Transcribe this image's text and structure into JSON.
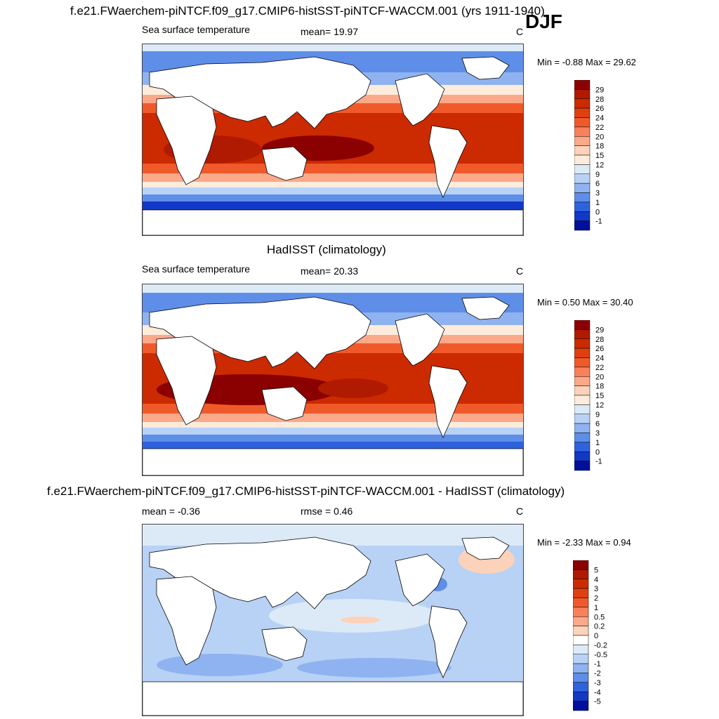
{
  "season": "DJF",
  "panels": [
    {
      "title": "f.e21.FWaerchem-piNTCF.f09_g17.CMIP6-histSST-piNTCF-WACCM.001 (yrs 1911-1940)",
      "left_label": "Sea surface temperature",
      "center_label": "mean=  19.97",
      "units": "C",
      "minmax": "Min =  -0.88 Max =  29.62"
    },
    {
      "title": "HadISST (climatology)",
      "left_label": "Sea surface temperature",
      "center_label": "mean=  20.33",
      "units": "C",
      "minmax": "Min =   0.50 Max =  30.40"
    },
    {
      "title": "f.e21.FWaerchem-piNTCF.f09_g17.CMIP6-histSST-piNTCF-WACCM.001 - HadISST (climatology)",
      "left_label": "mean =  -0.36",
      "center_label": "rmse =   0.46",
      "units": "C",
      "minmax": "Min =  -2.33 Max =   0.94"
    }
  ],
  "colorbars": {
    "sst": {
      "labels": [
        "29",
        "28",
        "26",
        "24",
        "22",
        "20",
        "18",
        "15",
        "12",
        "9",
        "6",
        "3",
        "1",
        "0",
        "-1"
      ],
      "colors": [
        "#8b0000",
        "#b01a00",
        "#cc2a00",
        "#e04010",
        "#f05a2a",
        "#f8805a",
        "#fca98a",
        "#fdd2ba",
        "#fdecdc",
        "#dceaf8",
        "#b8d2f5",
        "#8fb3f0",
        "#5e8ee8",
        "#2f62dd",
        "#1238c8",
        "#00109a"
      ]
    },
    "diff": {
      "labels": [
        "5",
        "4",
        "3",
        "2",
        "1",
        "0.5",
        "0.2",
        "0",
        "-0.2",
        "-0.5",
        "-1",
        "-2",
        "-3",
        "-4",
        "-5"
      ],
      "colors": [
        "#8b0000",
        "#b01a00",
        "#cc2a00",
        "#e04010",
        "#f05a2a",
        "#f8805a",
        "#fca98a",
        "#fdd2ba",
        "#ffffff",
        "#dceaf8",
        "#b8d2f5",
        "#8fb3f0",
        "#5e8ee8",
        "#2f62dd",
        "#1238c8",
        "#00109a"
      ]
    }
  }
}
